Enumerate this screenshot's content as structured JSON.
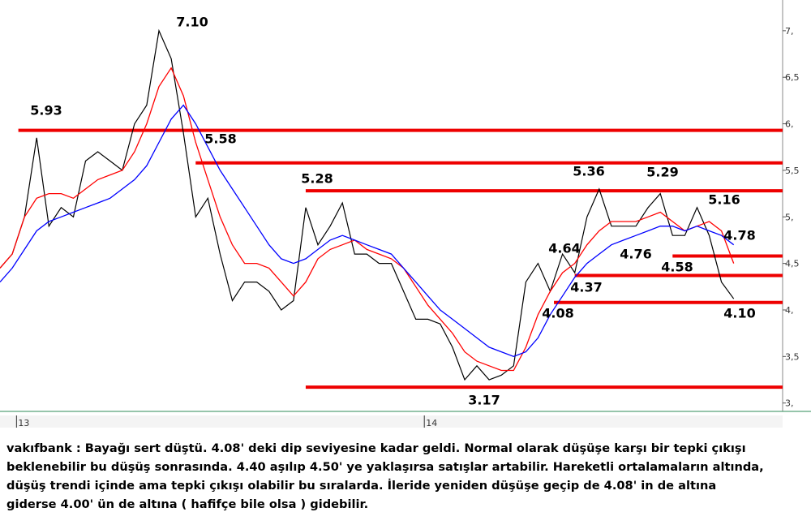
{
  "chart_data": {
    "type": "line",
    "x": [
      0,
      2,
      4,
      6,
      8,
      10,
      12,
      14,
      16,
      18,
      20,
      22,
      24,
      26,
      28,
      30,
      32,
      34,
      36,
      38,
      40,
      42,
      44,
      46,
      48,
      50,
      52,
      54,
      56,
      58,
      60,
      62,
      64,
      66,
      68,
      70,
      72,
      74,
      76,
      78,
      80,
      82,
      84,
      86,
      88,
      90,
      92,
      94,
      96,
      98,
      100,
      102,
      104,
      106,
      108,
      110,
      112,
      114,
      116,
      118,
      120
    ],
    "xlim": [
      0,
      128
    ],
    "xticks": [
      {
        "value": 2.7,
        "label": "13"
      },
      {
        "value": 69.4,
        "label": "14"
      }
    ],
    "ylim": [
      2.91,
      7.33
    ],
    "yticks": [
      {
        "value": 3,
        "label": "3,"
      },
      {
        "value": 3.5,
        "label": "3,5"
      },
      {
        "value": 4,
        "label": "4,"
      },
      {
        "value": 4.5,
        "label": "4,5"
      },
      {
        "value": 5,
        "label": "5,"
      },
      {
        "value": 5.5,
        "label": "5,5"
      },
      {
        "value": 6,
        "label": "6,"
      },
      {
        "value": 6.5,
        "label": "6,5"
      },
      {
        "value": 7,
        "label": "7,"
      }
    ],
    "series": [
      {
        "color": "#000000",
        "values": [
          4.45,
          4.6,
          5.0,
          5.85,
          4.9,
          5.1,
          5.0,
          5.6,
          5.7,
          5.6,
          5.5,
          6.0,
          6.2,
          7.0,
          6.7,
          5.9,
          5.0,
          5.2,
          4.6,
          4.1,
          4.3,
          4.3,
          4.2,
          4.0,
          4.1,
          5.1,
          4.7,
          4.9,
          5.15,
          4.6,
          4.6,
          4.5,
          4.5,
          4.2,
          3.9,
          3.9,
          3.85,
          3.6,
          3.25,
          3.4,
          3.25,
          3.3,
          3.4,
          4.3,
          4.5,
          4.2,
          4.6,
          4.4,
          5.0,
          5.3,
          4.9,
          4.9,
          4.9,
          5.1,
          5.25,
          4.8,
          4.8,
          5.1,
          4.8,
          4.3,
          4.12
        ]
      },
      {
        "color": "#ff0000",
        "values": [
          4.45,
          4.6,
          5.0,
          5.2,
          5.25,
          5.25,
          5.2,
          5.3,
          5.4,
          5.45,
          5.5,
          5.7,
          6.0,
          6.4,
          6.6,
          6.3,
          5.8,
          5.4,
          5.0,
          4.7,
          4.5,
          4.5,
          4.45,
          4.3,
          4.15,
          4.3,
          4.55,
          4.65,
          4.7,
          4.75,
          4.65,
          4.6,
          4.55,
          4.45,
          4.25,
          4.05,
          3.9,
          3.75,
          3.55,
          3.45,
          3.4,
          3.35,
          3.35,
          3.6,
          3.95,
          4.2,
          4.4,
          4.5,
          4.7,
          4.85,
          4.95,
          4.95,
          4.95,
          5.0,
          5.05,
          4.95,
          4.85,
          4.9,
          4.95,
          4.85,
          4.5
        ]
      },
      {
        "color": "#0000ff",
        "values": [
          4.3,
          4.45,
          4.65,
          4.85,
          4.95,
          5.0,
          5.05,
          5.1,
          5.15,
          5.2,
          5.3,
          5.4,
          5.55,
          5.8,
          6.05,
          6.2,
          6.0,
          5.75,
          5.5,
          5.3,
          5.1,
          4.9,
          4.7,
          4.55,
          4.5,
          4.55,
          4.65,
          4.75,
          4.8,
          4.75,
          4.7,
          4.65,
          4.6,
          4.45,
          4.3,
          4.15,
          4.0,
          3.9,
          3.8,
          3.7,
          3.6,
          3.55,
          3.5,
          3.55,
          3.7,
          3.95,
          4.15,
          4.35,
          4.5,
          4.6,
          4.7,
          4.75,
          4.8,
          4.85,
          4.9,
          4.9,
          4.85,
          4.9,
          4.85,
          4.8,
          4.7
        ]
      }
    ],
    "level_color": "#ee0000",
    "levels": [
      {
        "value": 5.93,
        "start": 3
      },
      {
        "value": 5.58,
        "start": 32
      },
      {
        "value": 5.28,
        "start": 50
      },
      {
        "value": 4.58,
        "start": 110
      },
      {
        "value": 4.37,
        "start": 94
      },
      {
        "value": 4.08,
        "start": 90.6
      },
      {
        "value": 3.17,
        "start": 50
      }
    ],
    "annotations": [
      {
        "value": 7.1,
        "label": "7.10"
      },
      {
        "value": 5.93,
        "label": "5.93"
      },
      {
        "value": 5.58,
        "label": "5.58"
      },
      {
        "value": 5.28,
        "label": "5.28"
      },
      {
        "value": 5.36,
        "label": "5.36"
      },
      {
        "value": 5.29,
        "label": "5.29"
      },
      {
        "value": 5.16,
        "label": "5.16"
      },
      {
        "value": 4.78,
        "label": "4.78"
      },
      {
        "value": 4.64,
        "label": "4.64"
      },
      {
        "value": 4.76,
        "label": "4.76"
      },
      {
        "value": 4.58,
        "label": "4.58"
      },
      {
        "value": 4.37,
        "label": "4.37"
      },
      {
        "value": 4.08,
        "label": "4.08"
      },
      {
        "value": 4.1,
        "label": "4.10"
      },
      {
        "value": 3.17,
        "label": "3.17"
      }
    ],
    "caption": [
      "vakıfbank : Bayağı sert düştü. 4.08' deki dip seviyesine kadar geldi. Normal olarak düşüşe karşı bir tepki çıkışı",
      "beklenebilir bu düşüş sonrasında. 4.40 aşılıp 4.50' ye yaklaşırsa satışlar artabilir. Hareketli ortalamaların altında,",
      "düşüş trendi içinde ama tepki çıkışı olabilir bu sıralarda. İleride yeniden düşüşe geçip de 4.08' in de altına",
      "giderse 4.00' ün de altına ( hafifçe bile olsa ) gidebilir."
    ]
  }
}
